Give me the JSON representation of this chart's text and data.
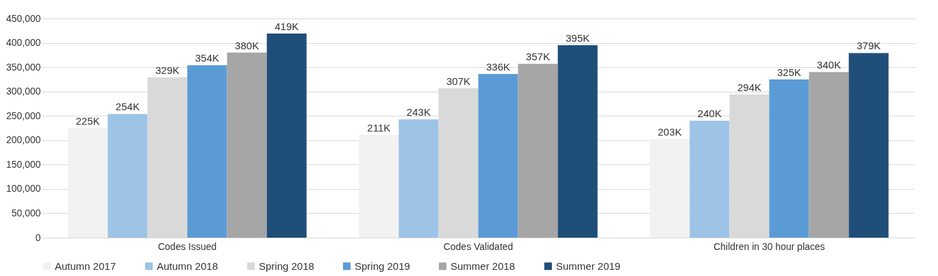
{
  "chart_data": {
    "type": "bar",
    "categories": [
      "Codes Issued",
      "Codes Validated",
      "Children in 30 hour places"
    ],
    "series": [
      {
        "name": "Autumn 2017",
        "color": "#f2f2f2",
        "values": [
          225000,
          211000,
          203000
        ],
        "value_labels": [
          "225K",
          "211K",
          "203K"
        ]
      },
      {
        "name": "Autumn 2018",
        "color": "#9dc3e6",
        "values": [
          254000,
          243000,
          240000
        ],
        "value_labels": [
          "254K",
          "243K",
          "240K"
        ]
      },
      {
        "name": "Spring 2018",
        "color": "#d9d9d9",
        "values": [
          329000,
          307000,
          294000
        ],
        "value_labels": [
          "329K",
          "307K",
          "294K"
        ]
      },
      {
        "name": "Spring 2019",
        "color": "#5b9bd5",
        "values": [
          354000,
          336000,
          325000
        ],
        "value_labels": [
          "354K",
          "336K",
          "325K"
        ]
      },
      {
        "name": "Summer 2018",
        "color": "#a6a6a6",
        "values": [
          380000,
          357000,
          340000
        ],
        "value_labels": [
          "380K",
          "357K",
          "340K"
        ]
      },
      {
        "name": "Summer 2019",
        "color": "#1f4e79",
        "values": [
          419000,
          395000,
          379000
        ],
        "value_labels": [
          "419K",
          "395K",
          "379K"
        ]
      }
    ],
    "ylim": [
      0,
      450000
    ],
    "yticks": [
      {
        "value": 0,
        "label": "0"
      },
      {
        "value": 50000,
        "label": "50,000"
      },
      {
        "value": 100000,
        "label": "100,000"
      },
      {
        "value": 150000,
        "label": "150,000"
      },
      {
        "value": 200000,
        "label": "200,000"
      },
      {
        "value": 250000,
        "label": "250,000"
      },
      {
        "value": 300000,
        "label": "300,000"
      },
      {
        "value": 350000,
        "label": "350,000"
      },
      {
        "value": 400000,
        "label": "400,000"
      },
      {
        "value": 450000,
        "label": "450,000"
      }
    ],
    "grid": "y",
    "legend": "bottom"
  }
}
